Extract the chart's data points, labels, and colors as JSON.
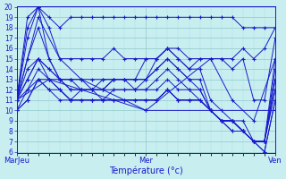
{
  "xlabel": "Température (°c)",
  "xlim": [
    0,
    96
  ],
  "ylim": [
    6,
    20
  ],
  "yticks": [
    6,
    7,
    8,
    9,
    10,
    11,
    12,
    13,
    14,
    15,
    16,
    17,
    18,
    19,
    20
  ],
  "xtick_positions": [
    0,
    48,
    96
  ],
  "xtick_labels": [
    "MarJeu",
    "Mer",
    "Ven"
  ],
  "bg_color": "#c8eef0",
  "grid_major_color": "#8ec8cc",
  "grid_minor_color": "#a8dde0",
  "line_color": "#1a1acc",
  "marker": "+",
  "lines": [
    {
      "x": [
        0,
        4,
        8,
        12,
        16,
        20,
        24,
        28,
        32,
        36,
        40,
        44,
        48,
        52,
        56,
        60,
        64,
        68,
        72,
        76,
        80,
        84,
        88,
        92,
        96
      ],
      "y": [
        11,
        19,
        20,
        19,
        18,
        19,
        19,
        19,
        19,
        19,
        19,
        19,
        19,
        19,
        19,
        19,
        19,
        19,
        19,
        19,
        19,
        18,
        18,
        18,
        18
      ]
    },
    {
      "x": [
        0,
        4,
        8,
        12,
        16,
        20,
        24,
        28,
        32,
        36,
        40,
        44,
        48,
        52,
        56,
        60,
        64,
        68,
        72,
        76,
        80,
        84,
        88,
        92,
        96
      ],
      "y": [
        11,
        18,
        20,
        18,
        15,
        15,
        15,
        15,
        15,
        16,
        15,
        15,
        15,
        15,
        16,
        16,
        15,
        15,
        15,
        15,
        15,
        16,
        15,
        16,
        18
      ]
    },
    {
      "x": [
        0,
        4,
        8,
        12,
        16,
        20,
        24,
        28,
        32,
        36,
        40,
        44,
        48,
        52,
        56,
        60,
        64,
        68,
        72,
        76,
        80,
        84,
        88,
        92,
        96
      ],
      "y": [
        11,
        17,
        20,
        15,
        13,
        13,
        13,
        13,
        13,
        13,
        13,
        13,
        15,
        15,
        16,
        15,
        14,
        15,
        15,
        15,
        14,
        15,
        11,
        11,
        17
      ]
    },
    {
      "x": [
        0,
        4,
        8,
        12,
        16,
        20,
        24,
        28,
        32,
        36,
        40,
        44,
        48,
        52,
        56,
        60,
        64,
        68,
        72,
        76,
        80,
        84,
        88,
        92,
        96
      ],
      "y": [
        11,
        15,
        18,
        15,
        13,
        13,
        13,
        12,
        13,
        13,
        13,
        13,
        13,
        15,
        16,
        15,
        14,
        14,
        11,
        10,
        9,
        9,
        7,
        7,
        15
      ]
    },
    {
      "x": [
        0,
        4,
        8,
        12,
        16,
        20,
        24,
        28,
        32,
        36,
        40,
        44,
        48,
        52,
        56,
        60,
        64,
        68,
        72,
        76,
        80,
        84,
        88,
        92,
        96
      ],
      "y": [
        11,
        14,
        15,
        14,
        13,
        13,
        12,
        12,
        12,
        13,
        13,
        13,
        13,
        14,
        15,
        14,
        13,
        13,
        10,
        9,
        9,
        8,
        7,
        7,
        14
      ]
    },
    {
      "x": [
        0,
        4,
        8,
        12,
        16,
        20,
        24,
        28,
        32,
        36,
        40,
        44,
        48,
        52,
        56,
        60,
        64,
        68,
        72,
        76,
        80,
        84,
        88,
        92,
        96
      ],
      "y": [
        11,
        13,
        15,
        14,
        13,
        12,
        12,
        12,
        12,
        13,
        13,
        12,
        13,
        14,
        15,
        14,
        13,
        12,
        10,
        9,
        9,
        8,
        7,
        7,
        13
      ]
    },
    {
      "x": [
        0,
        4,
        8,
        12,
        16,
        20,
        24,
        28,
        32,
        36,
        40,
        44,
        48,
        52,
        56,
        60,
        64,
        68,
        72,
        76,
        80,
        84,
        88,
        92,
        96
      ],
      "y": [
        11,
        12,
        14,
        13,
        13,
        12,
        12,
        12,
        12,
        12,
        12,
        12,
        12,
        13,
        14,
        13,
        12,
        12,
        10,
        9,
        9,
        8,
        7,
        7,
        13
      ]
    },
    {
      "x": [
        0,
        4,
        8,
        12,
        16,
        20,
        24,
        28,
        32,
        36,
        40,
        44,
        48,
        52,
        56,
        60,
        64,
        68,
        72,
        76,
        80,
        84,
        88,
        92,
        96
      ],
      "y": [
        10,
        12,
        13,
        13,
        12,
        11,
        12,
        12,
        11,
        12,
        12,
        12,
        12,
        12,
        13,
        12,
        12,
        11,
        10,
        9,
        9,
        8,
        7,
        7,
        12
      ]
    },
    {
      "x": [
        0,
        4,
        8,
        12,
        16,
        20,
        24,
        28,
        32,
        36,
        40,
        44,
        48,
        52,
        56,
        60,
        64,
        68,
        72,
        76,
        80,
        84,
        88,
        92,
        96
      ],
      "y": [
        11,
        13,
        15,
        13,
        12,
        11,
        11,
        11,
        11,
        11,
        11,
        11,
        11,
        11,
        12,
        11,
        11,
        11,
        10,
        9,
        9,
        8,
        7,
        7,
        12
      ]
    },
    {
      "x": [
        0,
        4,
        8,
        12,
        16,
        20,
        24,
        28,
        32,
        36,
        40,
        44,
        48,
        52,
        56,
        60,
        64,
        68,
        72,
        76,
        80,
        84,
        88,
        92,
        96
      ],
      "y": [
        10,
        11,
        13,
        12,
        12,
        11,
        11,
        11,
        11,
        11,
        11,
        11,
        11,
        11,
        12,
        11,
        11,
        11,
        10,
        9,
        8,
        8,
        7,
        6,
        11
      ]
    },
    {
      "x": [
        0,
        4,
        8,
        12,
        16,
        20,
        24,
        28,
        32,
        36,
        40,
        44,
        48,
        52,
        56,
        60,
        64,
        68,
        72,
        76,
        80,
        84,
        88,
        92,
        96
      ],
      "y": [
        10,
        11,
        13,
        12,
        11,
        11,
        11,
        11,
        11,
        11,
        11,
        11,
        11,
        11,
        12,
        11,
        11,
        11,
        10,
        9,
        8,
        8,
        7,
        6,
        11
      ]
    },
    {
      "x": [
        0,
        12,
        48,
        96
      ],
      "y": [
        11,
        13,
        10,
        10
      ]
    },
    {
      "x": [
        0,
        8,
        16,
        24,
        48,
        72,
        80,
        88,
        96
      ],
      "y": [
        11,
        19,
        15,
        13,
        10,
        15,
        11,
        9,
        15
      ]
    }
  ]
}
